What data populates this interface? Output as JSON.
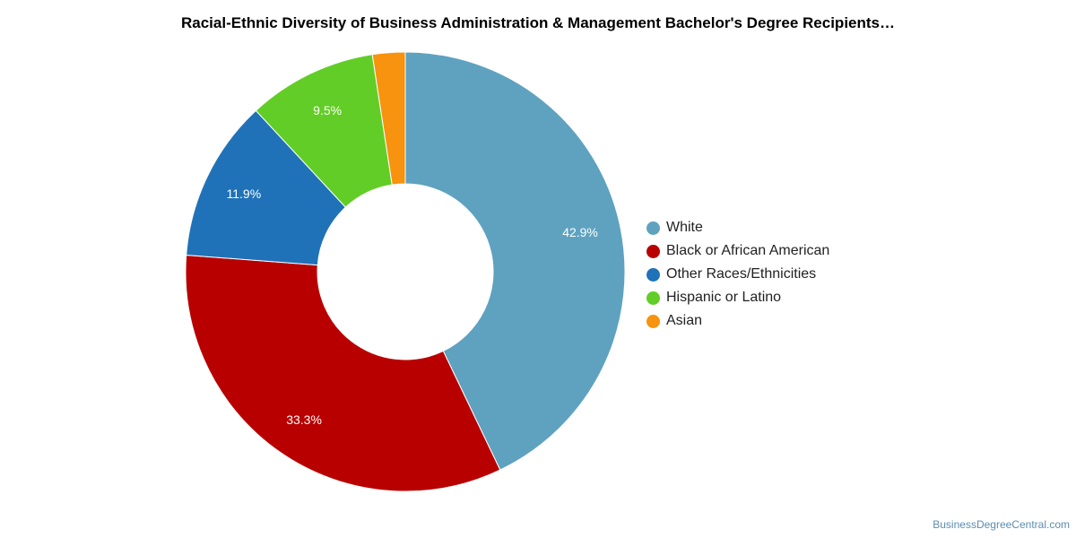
{
  "chart_data": {
    "type": "pie",
    "donut": true,
    "title": "Racial-Ethnic Diversity of Business Administration & Management Bachelor's Degree Recipients…",
    "legend_position": "right",
    "slices": [
      {
        "name": "White",
        "value": 42.9,
        "label": "42.9%",
        "color": "#5ea2c0"
      },
      {
        "name": "Black or African American",
        "value": 33.3,
        "label": "33.3%",
        "color": "#b90000"
      },
      {
        "name": "Other Races/Ethnicities",
        "value": 11.9,
        "label": "11.9%",
        "color": "#1f72b8"
      },
      {
        "name": "Hispanic or Latino",
        "value": 9.5,
        "label": "9.5%",
        "color": "#62cd26"
      },
      {
        "name": "Asian",
        "value": 2.4,
        "label": "",
        "color": "#f7930e"
      }
    ]
  },
  "footer": {
    "source": "BusinessDegreeCentral.com"
  }
}
